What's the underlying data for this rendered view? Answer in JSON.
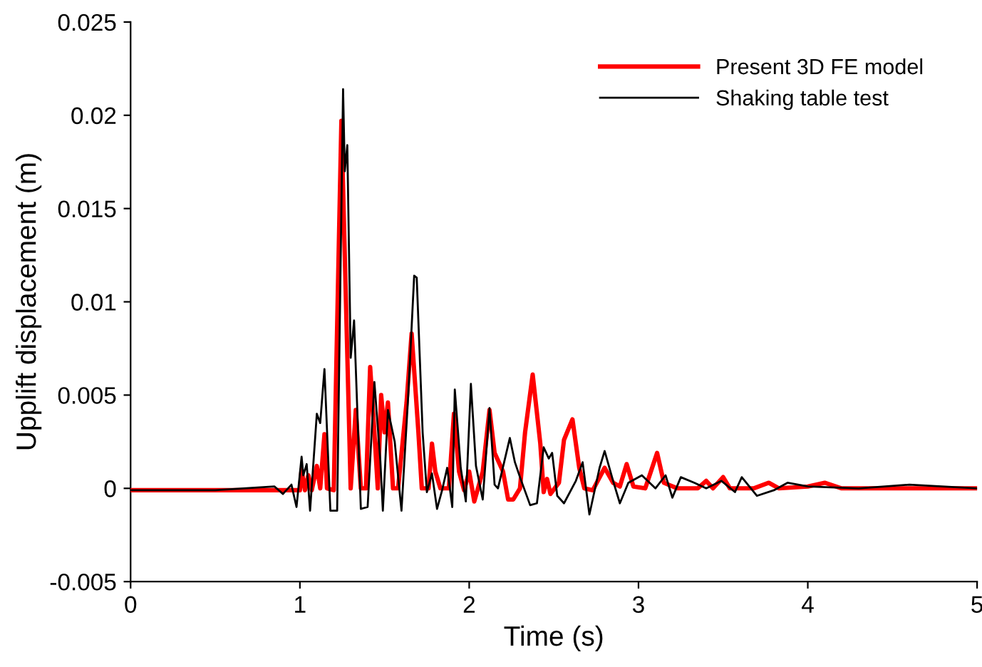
{
  "chart_data": {
    "type": "line",
    "xlabel": "Time (s)",
    "ylabel": "Upplift displacement (m)",
    "xlim": [
      0,
      5
    ],
    "xticks": [
      0,
      1,
      2,
      3,
      4,
      5
    ],
    "ylim": [
      -0.005,
      0.025
    ],
    "yticks": [
      -0.005,
      0,
      0.005,
      0.01,
      0.015,
      0.02,
      0.025
    ],
    "legend": "top right",
    "grid": false,
    "marker": "none",
    "line_style": "solid",
    "series": [
      {
        "name": "Present 3D FE model",
        "color": "#ff0000",
        "x": [
          0,
          0.5,
          1.0,
          1.01,
          1.03,
          1.05,
          1.07,
          1.1,
          1.12,
          1.145,
          1.16,
          1.2,
          1.245,
          1.3,
          1.33,
          1.36,
          1.39,
          1.415,
          1.44,
          1.46,
          1.48,
          1.5,
          1.52,
          1.55,
          1.58,
          1.63,
          1.66,
          1.7,
          1.72,
          1.76,
          1.78,
          1.8,
          1.83,
          1.88,
          1.91,
          1.94,
          1.97,
          2.0,
          2.03,
          2.08,
          2.12,
          2.15,
          2.2,
          2.23,
          2.26,
          2.3,
          2.33,
          2.375,
          2.42,
          2.44,
          2.46,
          2.48,
          2.53,
          2.56,
          2.61,
          2.65,
          2.68,
          2.73,
          2.8,
          2.85,
          2.89,
          2.93,
          2.97,
          3.04,
          3.11,
          3.15,
          3.23,
          3.35,
          3.4,
          3.44,
          3.5,
          3.54,
          3.68,
          3.77,
          3.83,
          4.0,
          4.1,
          4.2,
          4.5,
          5.0
        ],
        "values": [
          -0.0001,
          -0.0001,
          -0.0001,
          0.001,
          -0.0001,
          0.0007,
          -0.0001,
          0.0012,
          0,
          0.0029,
          0,
          -0.0001,
          0.0197,
          0,
          0.0042,
          0,
          0,
          0.0065,
          0.003,
          0,
          0.005,
          0.003,
          0.0046,
          0,
          0,
          0.0046,
          0.0083,
          0.003,
          0,
          0,
          0.0024,
          0.0009,
          0,
          0,
          0.004,
          0.0009,
          -0.0001,
          0.0009,
          -0.0007,
          0.0009,
          0.0042,
          0.0019,
          0.0009,
          -0.0006,
          -0.0006,
          0,
          0.003,
          0.0061,
          0.0024,
          -0.0002,
          0.0005,
          -0.0003,
          0.0003,
          0.0026,
          0.0037,
          0.0011,
          0,
          -0.0001,
          0.0011,
          0.0003,
          0.0001,
          0.0013,
          0.0001,
          0,
          0.0019,
          0.0003,
          0,
          0,
          0.0004,
          0,
          0.0006,
          0,
          0,
          0.0003,
          0,
          0.0001,
          0.0003,
          0,
          0,
          0
        ]
      },
      {
        "name": "Shaking table test",
        "color": "#000000",
        "x": [
          0,
          0.5,
          0.85,
          0.9,
          0.95,
          0.98,
          1.01,
          1.02,
          1.04,
          1.06,
          1.1,
          1.12,
          1.145,
          1.18,
          1.22,
          1.255,
          1.265,
          1.28,
          1.3,
          1.32,
          1.36,
          1.4,
          1.44,
          1.475,
          1.49,
          1.52,
          1.56,
          1.6,
          1.64,
          1.675,
          1.69,
          1.725,
          1.75,
          1.78,
          1.81,
          1.84,
          1.87,
          1.9,
          1.915,
          1.95,
          1.98,
          2.01,
          2.04,
          2.08,
          2.12,
          2.15,
          2.17,
          2.24,
          2.27,
          2.3,
          2.36,
          2.4,
          2.44,
          2.47,
          2.49,
          2.52,
          2.56,
          2.63,
          2.67,
          2.71,
          2.77,
          2.8,
          2.85,
          2.89,
          2.94,
          3.02,
          3.1,
          3.16,
          3.2,
          3.25,
          3.33,
          3.4,
          3.49,
          3.57,
          3.61,
          3.7,
          3.8,
          3.88,
          4.0,
          4.3,
          4.6,
          5.0
        ],
        "values": [
          -0.0001,
          -0.0001,
          0.0001,
          -0.0003,
          0.0002,
          -0.001,
          0.0017,
          0.0007,
          0.0013,
          -0.0012,
          0.004,
          0.0035,
          0.0064,
          -0.0012,
          -0.0012,
          0.0214,
          0.017,
          0.0184,
          0.007,
          0.009,
          -0.0011,
          -0.001,
          0.0057,
          0.0015,
          -0.0012,
          0.0042,
          0.0025,
          -0.0012,
          0.005,
          0.0114,
          0.0113,
          0.003,
          -0.0002,
          0.0008,
          -0.0011,
          -0.0001,
          0.0011,
          -0.001,
          0.0053,
          0.0011,
          -0.0007,
          0.0056,
          0.0012,
          -0.0006,
          0.0043,
          0.0002,
          0,
          0.0027,
          0.0014,
          0.0006,
          -0.0009,
          -0.0008,
          0.0022,
          0.0016,
          0.0019,
          -0.0004,
          -0.0008,
          0.0004,
          0.0014,
          -0.0014,
          0.0011,
          0.002,
          0.0004,
          -0.0008,
          0.0003,
          0.0007,
          0,
          0.0007,
          -0.0005,
          0.0006,
          0.0003,
          0,
          0.0004,
          -0.0002,
          0.0006,
          -0.0004,
          -0.0001,
          0.0003,
          0.0001,
          0,
          0.0002,
          0
        ]
      }
    ]
  }
}
